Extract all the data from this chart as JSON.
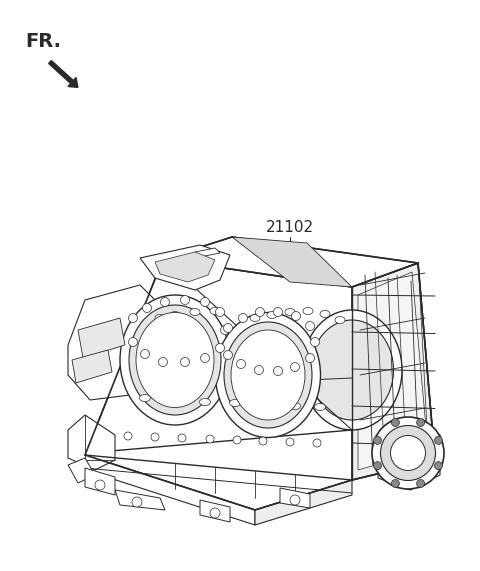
{
  "background_color": "#ffffff",
  "line_color": "#2a2a2a",
  "fr_label": "FR.",
  "part_number": "21102",
  "fig_width": 4.8,
  "fig_height": 5.71,
  "dpi": 100
}
